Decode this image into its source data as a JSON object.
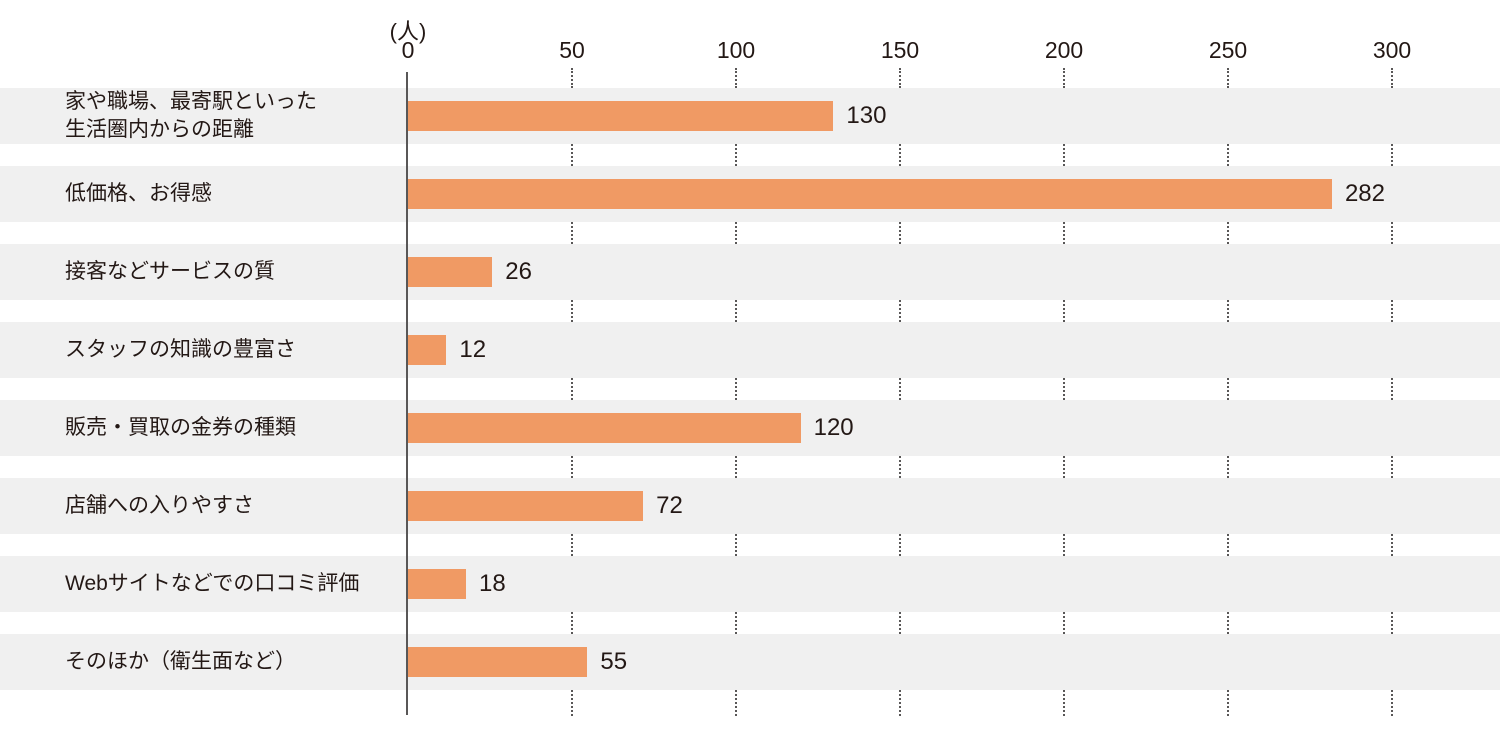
{
  "chart_data": {
    "type": "bar",
    "orientation": "horizontal",
    "title": "",
    "x_axis": {
      "unit_label": "(人)",
      "ticks": [
        0,
        50,
        100,
        150,
        200,
        250,
        300
      ],
      "range": [
        0,
        333
      ],
      "gridlines": "dotted-vertical-in-row-gaps"
    },
    "categories": [
      "家や職場、最寄駅といった\n生活圏内からの距離",
      "低価格、お得感",
      "接客などサービスの質",
      "スタッフの知識の豊富さ",
      "販売・買取の金券の種類",
      "店舗への入りやすさ",
      "Webサイトなどでの口コミ評価",
      "そのほか（衛生面など）"
    ],
    "values": [
      130,
      282,
      26,
      12,
      120,
      72,
      18,
      55
    ],
    "value_labels": [
      "130",
      "282",
      "26",
      "12",
      "120",
      "72",
      "18",
      "55"
    ],
    "colors": {
      "bar": "#f09a64",
      "row_band": "#f0f0f0",
      "grid_and_axis": "#595757",
      "text": "#231815",
      "background": "#ffffff"
    },
    "legend": null
  }
}
